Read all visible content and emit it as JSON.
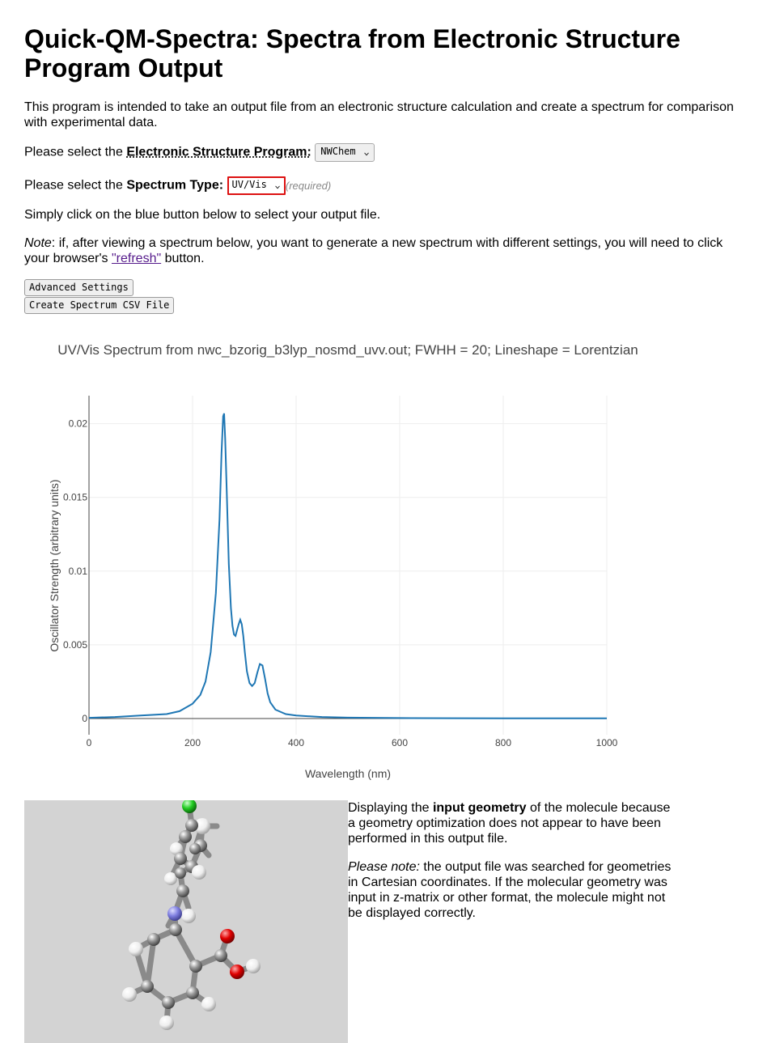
{
  "title": "Quick-QM-Spectra: Spectra from Electronic Structure Program Output",
  "intro": "This program is intended to take an output file from an electronic structure calculation and create a spectrum for comparison with experimental data.",
  "program_row": {
    "prefix": "Please select the",
    "label": "Electronic Structure Program:",
    "selected": "NWChem"
  },
  "type_row": {
    "prefix": "Please select the",
    "label": "Spectrum Type:",
    "selected": "UV/Vis",
    "required": "(required)"
  },
  "instruction": "Simply click on the blue button below to select your output file.",
  "note": {
    "label": "Note",
    "text_before": ": if, after viewing a spectrum below, you want to generate a new spectrum with different settings, you will need to click your browser's",
    "link": "\"refresh\"",
    "text_after": "button."
  },
  "buttons": {
    "advanced": "Advanced Settings",
    "csv": "Create Spectrum CSV File"
  },
  "chart_data": {
    "type": "line",
    "title": "UV/Vis Spectrum from nwc_bzorig_b3lyp_nosmd_uvv.out; FWHH = 20; Lineshape = Lorentzian",
    "xlabel": "Wavelength (nm)",
    "ylabel": "Oscillator Strength (arbitrary units)",
    "xlim": [
      0,
      1000
    ],
    "ylim": [
      -0.0011,
      0.0219
    ],
    "x_ticks": [
      "0",
      "200",
      "400",
      "600",
      "800",
      "1000"
    ],
    "y_ticks": [
      "0",
      "0.005",
      "0.01",
      "0.015",
      "0.02"
    ],
    "grid": true,
    "line_color": "#1f77b4",
    "series": [
      {
        "x": [
          0,
          50,
          100,
          150,
          175,
          200,
          215,
          225,
          235,
          245,
          252,
          256,
          259,
          261,
          263,
          266,
          270,
          274,
          277,
          280,
          283,
          286,
          289,
          292,
          295,
          298,
          301,
          305,
          310,
          315,
          320,
          325,
          330,
          335,
          340,
          345,
          350,
          360,
          380,
          400,
          450,
          500,
          600,
          700,
          800,
          900,
          1000
        ],
        "y": [
          5e-05,
          0.0001,
          0.0002,
          0.0003,
          0.0005,
          0.001,
          0.0016,
          0.0025,
          0.0045,
          0.0085,
          0.0135,
          0.018,
          0.0205,
          0.0207,
          0.019,
          0.0155,
          0.0105,
          0.0075,
          0.0063,
          0.0057,
          0.0056,
          0.006,
          0.0064,
          0.0067,
          0.0064,
          0.0056,
          0.0045,
          0.0032,
          0.0024,
          0.0022,
          0.0024,
          0.0031,
          0.0037,
          0.0036,
          0.0027,
          0.0017,
          0.0011,
          0.0006,
          0.0003,
          0.0002,
          0.0001,
          6e-05,
          3e-05,
          2e-05,
          1e-05,
          1e-05,
          1e-05
        ]
      }
    ]
  },
  "molecule": {
    "background": "#d3d3d3",
    "atom_colors": {
      "C": "#909090",
      "H": "#ffffff",
      "N": "#8080e0",
      "O": "#dd0000",
      "Cl": "#22cc22"
    }
  },
  "geometry_info": {
    "p1_before": "Displaying the",
    "p1_bold": "input geometry",
    "p1_after": "of the molecule because a geometry optimization does not appear to have been performed in this output file.",
    "p2_label": "Please note:",
    "p2_text": "the output file was searched for geometries in Cartesian coordinates. If the molecular geometry was input in z-matrix or other format, the molecule might not be displayed correctly."
  }
}
